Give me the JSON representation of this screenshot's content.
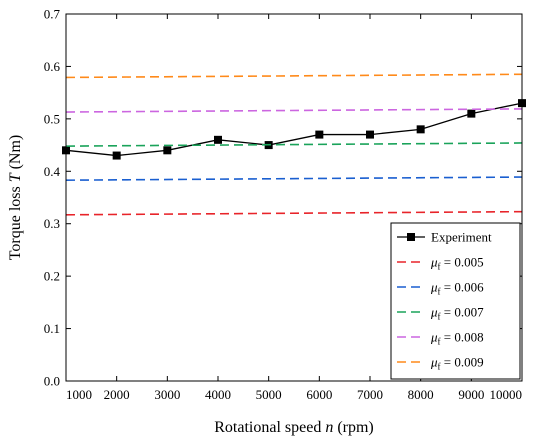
{
  "chart_data": {
    "type": "line",
    "xlabel": {
      "prefix": "Rotational speed ",
      "var": "n",
      "suffix": " (rpm)"
    },
    "ylabel": {
      "prefix": "Torque loss ",
      "var": "T",
      "suffix": " (Nm)"
    },
    "xlim": [
      1000,
      10000
    ],
    "ylim": [
      0.0,
      0.7
    ],
    "x_ticks": [
      1000,
      2000,
      3000,
      4000,
      5000,
      6000,
      7000,
      8000,
      9000,
      10000
    ],
    "y_ticks": [
      0.0,
      0.1,
      0.2,
      0.3,
      0.4,
      0.5,
      0.6,
      0.7
    ],
    "y_tick_labels": [
      "0.0",
      "0.1",
      "0.2",
      "0.3",
      "0.4",
      "0.5",
      "0.6",
      "0.7"
    ],
    "grid": false,
    "legend_position": "bottom-right",
    "series": [
      {
        "name": "Experiment",
        "style": "solid-square-markers",
        "color": "#000000",
        "x": [
          1000,
          2000,
          3000,
          4000,
          5000,
          6000,
          7000,
          8000,
          9000,
          10000
        ],
        "y": [
          0.44,
          0.43,
          0.44,
          0.46,
          0.45,
          0.47,
          0.47,
          0.48,
          0.51,
          0.53
        ]
      },
      {
        "name_prefix": "μ",
        "name_sub": "f",
        "name_value": " = 0.005",
        "style": "dashed",
        "color": "#e8242a",
        "x": [
          1000,
          10000
        ],
        "y": [
          0.317,
          0.323
        ]
      },
      {
        "name_prefix": "μ",
        "name_sub": "f",
        "name_value": " = 0.006",
        "style": "dashed",
        "color": "#1a5fd0",
        "x": [
          1000,
          10000
        ],
        "y": [
          0.383,
          0.389
        ]
      },
      {
        "name_prefix": "μ",
        "name_sub": "f",
        "name_value": " = 0.007",
        "style": "dashed",
        "color": "#1aa35a",
        "x": [
          1000,
          10000
        ],
        "y": [
          0.448,
          0.454
        ]
      },
      {
        "name_prefix": "μ",
        "name_sub": "f",
        "name_value": " = 0.008",
        "style": "dashed",
        "color": "#cc66e0",
        "x": [
          1000,
          10000
        ],
        "y": [
          0.513,
          0.519
        ]
      },
      {
        "name_prefix": "μ",
        "name_sub": "f",
        "name_value": " = 0.009",
        "style": "dashed",
        "color": "#ff8a1a",
        "x": [
          1000,
          10000
        ],
        "y": [
          0.579,
          0.585
        ]
      }
    ]
  }
}
